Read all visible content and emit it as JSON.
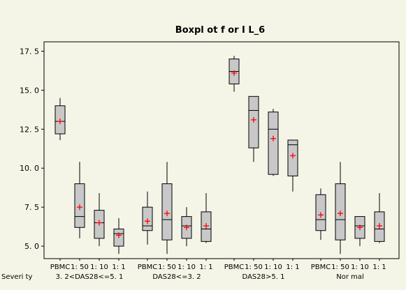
{
  "chart_data": {
    "type": "boxplot",
    "title": "Boxpl ot  f or  I L_6",
    "ylim": [
      4.2,
      18.1
    ],
    "yticks": [
      5.0,
      7.5,
      10.0,
      12.5,
      15.0,
      17.5
    ],
    "ytick_labels": [
      "5. 0",
      "7. 5",
      "10. 0",
      "12. 5",
      "15. 0",
      "17. 5"
    ],
    "grouping_label": "Severi ty",
    "box_fill": "#c8c8c8",
    "mean_color": "#ff0000",
    "background": "#f5f5e7",
    "groups": [
      {
        "label": "3. 2<DAS28<=5. 1",
        "boxes": [
          {
            "label": "PBMC",
            "whisker_low": 11.8,
            "q1": 12.2,
            "median": 13.0,
            "q3": 14.0,
            "whisker_high": 14.5,
            "mean": 13.0
          },
          {
            "label": "1: 50",
            "whisker_low": 5.5,
            "q1": 6.2,
            "median": 6.9,
            "q3": 9.0,
            "whisker_high": 10.4,
            "mean": 7.5
          },
          {
            "label": "1: 10",
            "whisker_low": 5.0,
            "q1": 5.5,
            "median": 6.5,
            "q3": 7.3,
            "whisker_high": 8.4,
            "mean": 6.5
          },
          {
            "label": "1: 1",
            "whisker_low": 4.5,
            "q1": 5.0,
            "median": 5.8,
            "q3": 6.1,
            "whisker_high": 6.8,
            "mean": 5.7
          }
        ]
      },
      {
        "label": "DAS28<=3. 2",
        "boxes": [
          {
            "label": "PBMC",
            "whisker_low": 5.1,
            "q1": 6.0,
            "median": 6.3,
            "q3": 7.5,
            "whisker_high": 8.5,
            "mean": 6.6
          },
          {
            "label": "1: 50",
            "whisker_low": 4.5,
            "q1": 5.4,
            "median": 6.7,
            "q3": 9.0,
            "whisker_high": 10.4,
            "mean": 7.1
          },
          {
            "label": "1: 10",
            "whisker_low": 5.0,
            "q1": 5.5,
            "median": 6.3,
            "q3": 6.9,
            "whisker_high": 7.5,
            "mean": 6.2
          },
          {
            "label": "1: 1",
            "whisker_low": 5.2,
            "q1": 5.3,
            "median": 6.1,
            "q3": 7.2,
            "whisker_high": 8.4,
            "mean": 6.3
          }
        ]
      },
      {
        "label": "DAS28>5. 1",
        "boxes": [
          {
            "label": "PBMC",
            "whisker_low": 14.9,
            "q1": 15.4,
            "median": 16.2,
            "q3": 17.0,
            "whisker_high": 17.2,
            "mean": 16.1
          },
          {
            "label": "1: 50",
            "whisker_low": 10.4,
            "q1": 11.3,
            "median": 13.7,
            "q3": 14.6,
            "whisker_high": 14.6,
            "mean": 13.1
          },
          {
            "label": "1: 10",
            "whisker_low": 9.5,
            "q1": 9.6,
            "median": 12.5,
            "q3": 13.6,
            "whisker_high": 13.8,
            "mean": 11.9
          },
          {
            "label": "1: 1",
            "whisker_low": 8.5,
            "q1": 9.5,
            "median": 11.5,
            "q3": 11.8,
            "whisker_high": 11.8,
            "mean": 10.8
          }
        ]
      },
      {
        "label": "Nor mal",
        "boxes": [
          {
            "label": "PBMC",
            "whisker_low": 5.4,
            "q1": 6.0,
            "median": 6.7,
            "q3": 8.3,
            "whisker_high": 8.7,
            "mean": 7.0
          },
          {
            "label": "1: 50",
            "whisker_low": 4.5,
            "q1": 5.4,
            "median": 6.7,
            "q3": 9.0,
            "whisker_high": 10.4,
            "mean": 7.1
          },
          {
            "label": "1: 10",
            "whisker_low": 5.0,
            "q1": 5.5,
            "median": 6.3,
            "q3": 6.9,
            "whisker_high": 6.9,
            "mean": 6.2
          },
          {
            "label": "1: 1",
            "whisker_low": 5.2,
            "q1": 5.3,
            "median": 6.1,
            "q3": 7.2,
            "whisker_high": 8.4,
            "mean": 6.3
          }
        ]
      }
    ]
  }
}
